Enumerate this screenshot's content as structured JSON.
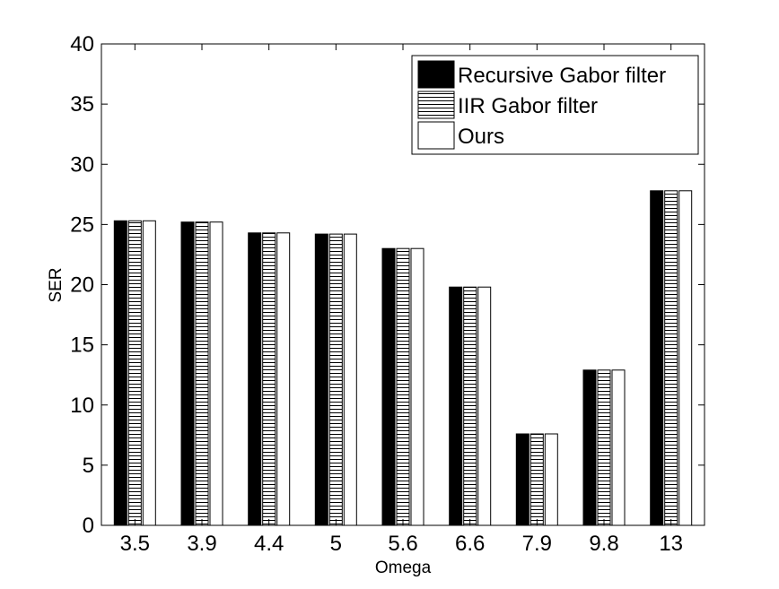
{
  "chart_data": {
    "type": "bar",
    "title": "",
    "xlabel": "Omega",
    "ylabel": "SER",
    "categories": [
      "3.5",
      "3.9",
      "4.4",
      "5",
      "5.6",
      "6.6",
      "7.9",
      "9.8",
      "13"
    ],
    "yticks": [
      "0",
      "5",
      "10",
      "15",
      "20",
      "25",
      "30",
      "35",
      "40"
    ],
    "ylim": [
      0,
      40
    ],
    "grid": false,
    "legend_position": "top-right",
    "series": [
      {
        "name": "Recursive Gabor filter",
        "fill": "solid-black",
        "values": [
          25.3,
          25.2,
          24.3,
          24.2,
          23.0,
          19.8,
          7.6,
          12.9,
          27.8
        ]
      },
      {
        "name": "IIR Gabor filter",
        "fill": "horizontal-hatch",
        "values": [
          25.3,
          25.2,
          24.3,
          24.2,
          23.0,
          19.8,
          7.6,
          12.9,
          27.8
        ]
      },
      {
        "name": "Ours",
        "fill": "white",
        "values": [
          25.3,
          25.2,
          24.3,
          24.2,
          23.0,
          19.8,
          7.6,
          12.9,
          27.8
        ]
      }
    ],
    "colors": {
      "axis": "#000000",
      "solid": "#000000",
      "hatch": "#000000",
      "background": "#ffffff"
    }
  }
}
